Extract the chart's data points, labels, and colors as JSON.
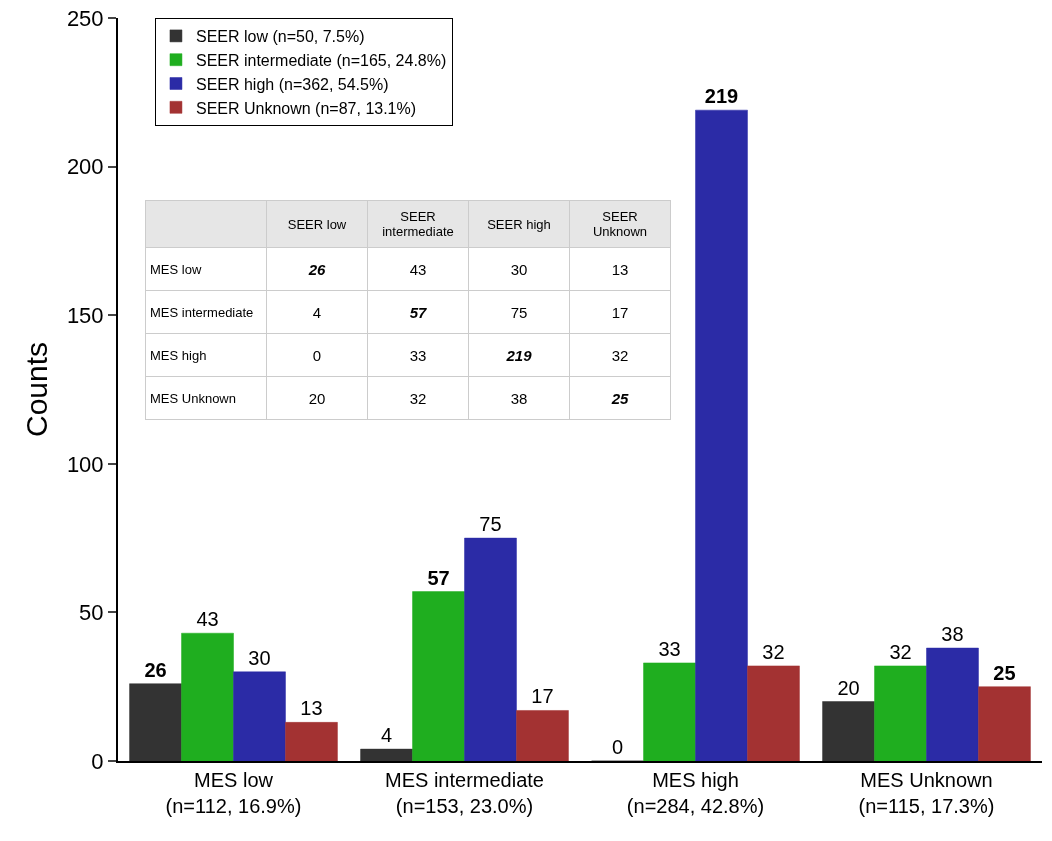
{
  "chart_data": {
    "type": "bar",
    "ylabel": "Counts",
    "categories": [
      "MES low\n(n=112, 16.9%)",
      "MES intermediate\n(n=153, 23.0%)",
      "MES high\n(n=284, 42.8%)",
      "MES Unknown\n(n=115, 17.3%)"
    ],
    "series": [
      {
        "name": "SEER low (n=50, 7.5%)",
        "color": "#333333",
        "values": [
          26,
          4,
          0,
          20
        ]
      },
      {
        "name": "SEER intermediate (n=165, 24.8%)",
        "color": "#1fae1f",
        "values": [
          43,
          57,
          33,
          32
        ]
      },
      {
        "name": "SEER high (n=362, 54.5%)",
        "color": "#2b2ba6",
        "values": [
          30,
          75,
          219,
          38
        ]
      },
      {
        "name": "SEER Unknown (n=87, 13.1%)",
        "color": "#a33232",
        "values": [
          13,
          17,
          32,
          25
        ]
      }
    ],
    "annotations": [
      "SEER low",
      "SEER\nintermediate",
      "SEER high",
      "SEER\nUnknown",
      "MES low",
      "26",
      "43",
      "30",
      "13",
      "MES intermediate",
      "4",
      "57",
      "75",
      "17",
      "MES high",
      "0",
      "33",
      "219",
      "32",
      "MES Unknown",
      "20",
      "32",
      "38",
      "25"
    ],
    "ylim": [
      0,
      250
    ],
    "yticks": [
      0,
      50,
      100,
      150,
      200,
      250
    ],
    "grid": false,
    "legend": "top left",
    "data_labels": true
  }
}
